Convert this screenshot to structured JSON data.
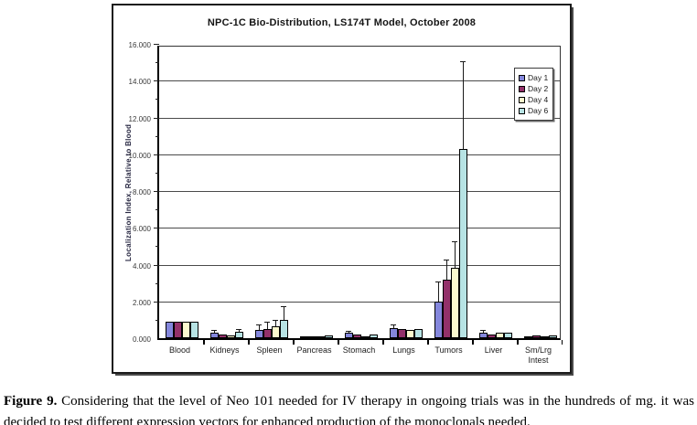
{
  "figure": {
    "caption_label": "Figure 9.",
    "caption_text": " Considering that the level of Neo 101 needed for IV therapy in ongoing trials was in the hundreds of mg. it was decided to test different expression vectors for enhanced production of the monoclonals needed."
  },
  "chart_data": {
    "type": "bar",
    "title": "NPC-1C Bio-Distribution, LS174T Model, October 2008",
    "xlabel": "",
    "ylabel": "Localization Index, Relative to Blood",
    "ylim": [
      0,
      16
    ],
    "ytick_step": 2,
    "ytick_labels": [
      "0.000",
      "2.000",
      "4.000",
      "6.000",
      "8.000",
      "10.000",
      "12.000",
      "14.000",
      "16.000"
    ],
    "grid": true,
    "legend_position": "upper-right",
    "categories": [
      "Blood",
      "Kidneys",
      "Spleen",
      "Pancreas",
      "Stomach",
      "Lungs",
      "Tumors",
      "Liver",
      "Sm/Lrg Intest"
    ],
    "series": [
      {
        "name": "Day 1",
        "color": "#8487DC",
        "values": [
          0.92,
          0.28,
          0.45,
          0.12,
          0.28,
          0.55,
          2.0,
          0.3,
          0.12
        ],
        "errors": [
          null,
          0.38,
          0.7,
          null,
          0.35,
          0.72,
          3.05,
          0.38,
          null
        ]
      },
      {
        "name": "Day 2",
        "color": "#93316A",
        "values": [
          0.92,
          0.2,
          0.5,
          0.1,
          0.22,
          0.48,
          3.2,
          0.2,
          0.15
        ],
        "errors": [
          null,
          null,
          0.85,
          null,
          null,
          null,
          4.2,
          null,
          null
        ]
      },
      {
        "name": "Day 4",
        "color": "#FBF9CE",
        "values": [
          0.92,
          0.15,
          0.65,
          0.08,
          0.12,
          0.45,
          3.85,
          0.28,
          0.12
        ],
        "errors": [
          null,
          null,
          0.95,
          null,
          null,
          null,
          5.2,
          null,
          null
        ]
      },
      {
        "name": "Day 6",
        "color": "#B7E3E4",
        "values": [
          0.92,
          0.33,
          1.0,
          0.15,
          0.22,
          0.5,
          10.3,
          0.28,
          0.15
        ],
        "errors": [
          null,
          0.45,
          1.7,
          null,
          null,
          null,
          15.0,
          null,
          null
        ]
      }
    ]
  }
}
